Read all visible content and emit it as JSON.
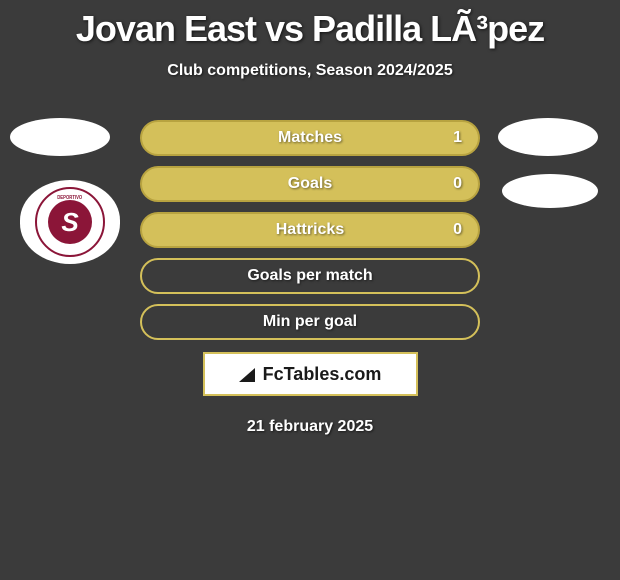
{
  "title": "Jovan East vs Padilla LÃ³pez",
  "subtitle": "Club competitions, Season 2024/2025",
  "club_badge": {
    "text_top": "DEPORTIVO",
    "letter": "S",
    "colors": {
      "primary": "#8b1538",
      "bg": "#ffffff"
    }
  },
  "stats": [
    {
      "label": "Matches",
      "value": "1",
      "filled": true,
      "show_value": true
    },
    {
      "label": "Goals",
      "value": "0",
      "filled": true,
      "show_value": true
    },
    {
      "label": "Hattricks",
      "value": "0",
      "filled": true,
      "show_value": true
    },
    {
      "label": "Goals per match",
      "value": "",
      "filled": false,
      "show_value": false
    },
    {
      "label": "Min per goal",
      "value": "",
      "filled": false,
      "show_value": false
    }
  ],
  "logo": {
    "text": "FcTables.com"
  },
  "date": "21 february 2025",
  "colors": {
    "background": "#3b3b3b",
    "bar_fill": "#d4c05a",
    "bar_border": "#b8a340",
    "text": "#ffffff"
  }
}
